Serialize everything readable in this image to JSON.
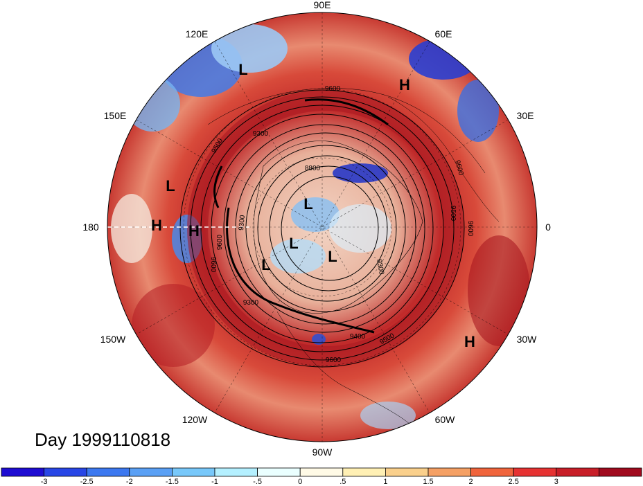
{
  "title": "Day 1999110818",
  "longitude_labels": [
    "90E",
    "120E",
    "60E",
    "150E",
    "30E",
    "180",
    "0",
    "150W",
    "30W",
    "120W",
    "60W",
    "90W"
  ],
  "pressure_centers": [
    {
      "type": "L"
    },
    {
      "type": "H"
    },
    {
      "type": "L"
    },
    {
      "type": "H"
    },
    {
      "type": "H"
    },
    {
      "type": "L"
    },
    {
      "type": "L"
    },
    {
      "type": "L"
    },
    {
      "type": "L"
    },
    {
      "type": "H"
    }
  ],
  "contour_labels": [
    "9600",
    "9300",
    "9500",
    "8800",
    "9600",
    "9500",
    "9600",
    "9300",
    "9300",
    "9400",
    "9500",
    "9600",
    "9600",
    "9600",
    "9300"
  ],
  "colorbar": {
    "colors": [
      "#1e0cd2",
      "#2846e6",
      "#3c78f0",
      "#5aa0f5",
      "#78c8fa",
      "#b4f0ff",
      "#eaffff",
      "#fffae6",
      "#fff0b4",
      "#fad08c",
      "#f5a064",
      "#f0643c",
      "#e63232",
      "#c81e28",
      "#a00a1e"
    ],
    "labels": [
      "-3",
      "-2.5",
      "-2",
      "-1.5",
      "-1",
      "-.5",
      "0",
      ".5",
      "1",
      "1.5",
      "2",
      "2.5",
      "3"
    ]
  }
}
